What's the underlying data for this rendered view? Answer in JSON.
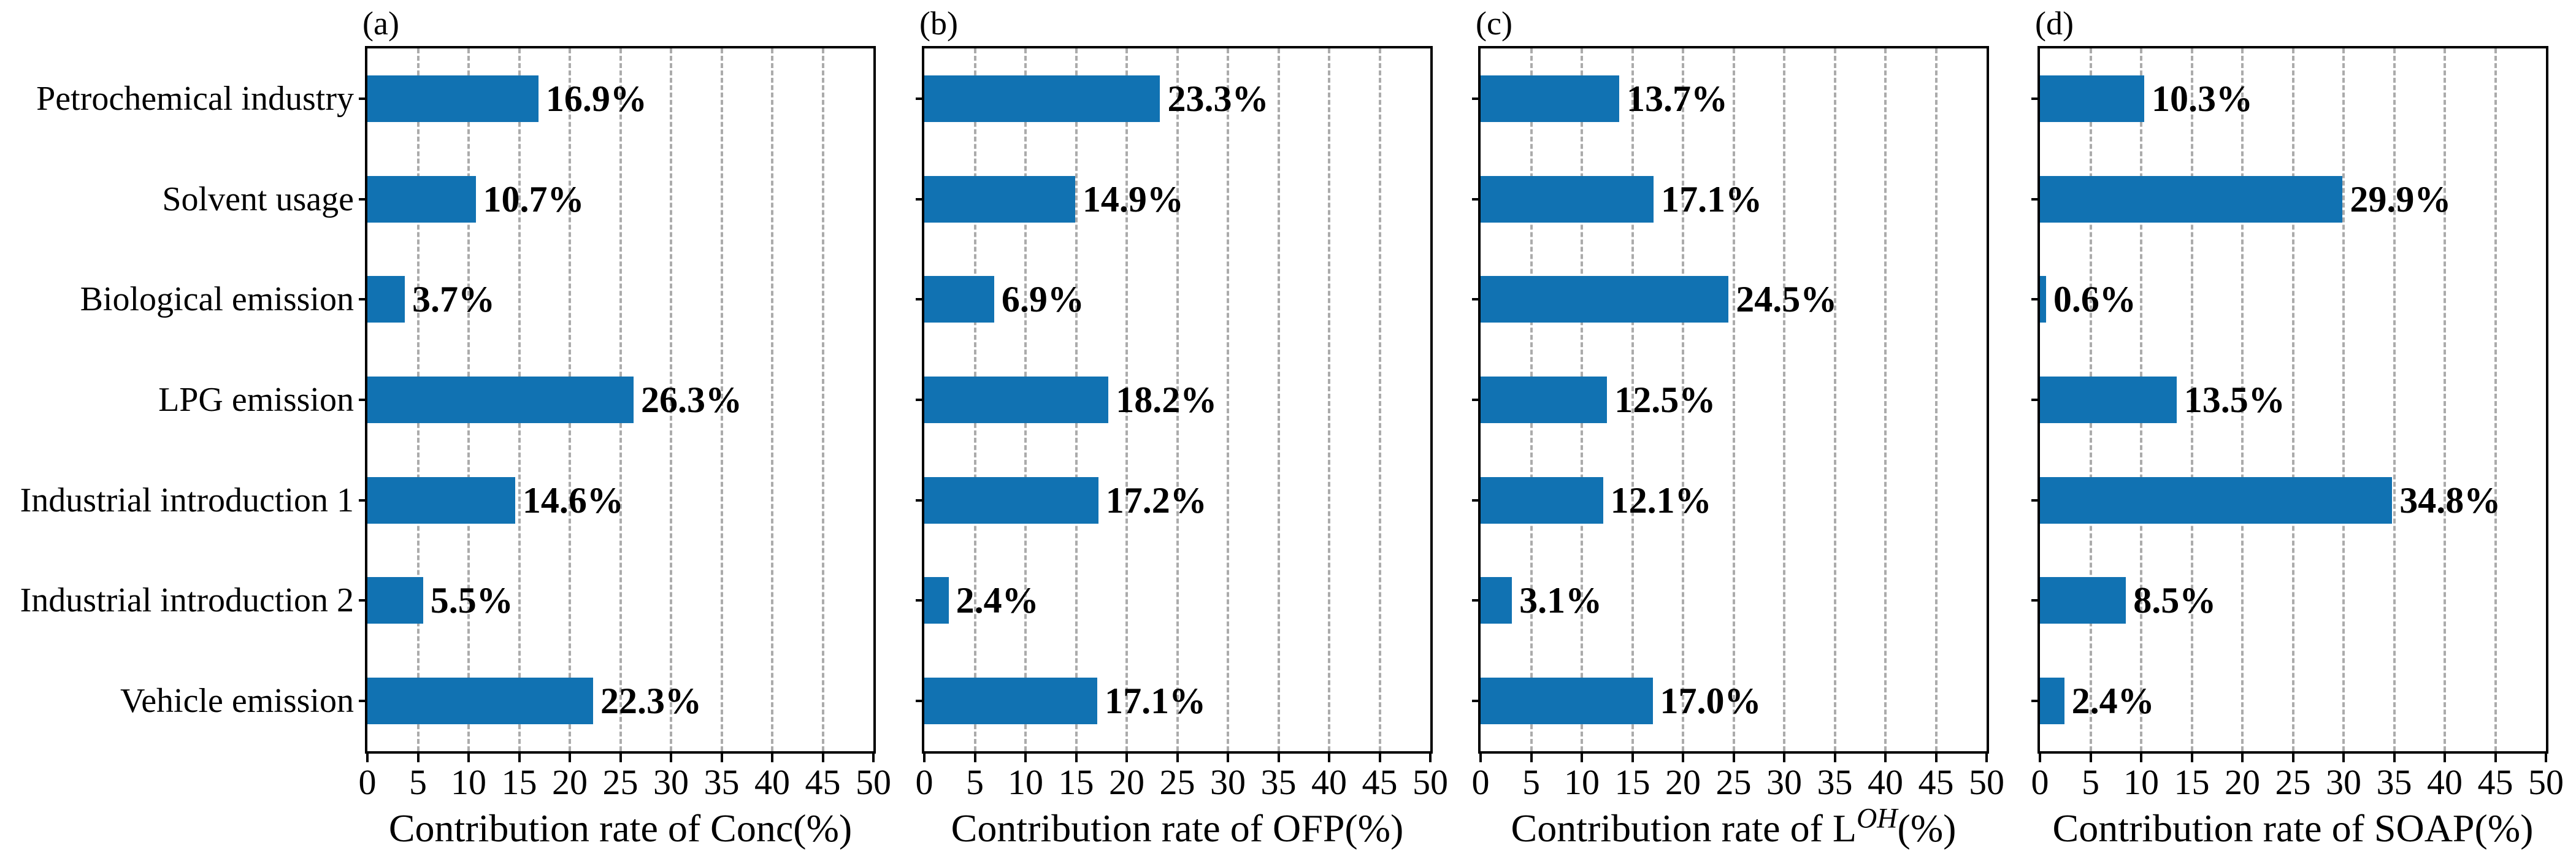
{
  "figure": {
    "background_color": "#ffffff",
    "bar_color": "#1172b2",
    "grid_color": "#ababab",
    "frame_color": "#000000",
    "text_color": "#000000",
    "categories": [
      "Petrochemical industry",
      "Solvent usage",
      "Biological emission",
      "LPG emission",
      "Industrial introduction 1",
      "Industrial introduction 2",
      "Vehicle emission"
    ]
  },
  "chart_data": [
    {
      "type": "bar",
      "orientation": "horizontal",
      "panel_label": "(a)",
      "categories": [
        "Petrochemical industry",
        "Solvent usage",
        "Biological emission",
        "LPG emission",
        "Industrial introduction 1",
        "Industrial introduction 2",
        "Vehicle emission"
      ],
      "values": [
        16.9,
        10.7,
        3.7,
        26.3,
        14.6,
        5.5,
        22.3
      ],
      "value_labels": [
        "16.9%",
        "10.7%",
        "3.7%",
        "26.3%",
        "14.6%",
        "5.5%",
        "22.3%"
      ],
      "xlabel_pre": "Contribution rate of Conc",
      "xlabel_sup": "",
      "xlabel_post": "(%)",
      "xlim": [
        0,
        50
      ],
      "xticks": [
        0,
        5,
        10,
        15,
        20,
        25,
        30,
        35,
        40,
        45,
        50
      ],
      "grid": "vertical-dashed",
      "legend": "none"
    },
    {
      "type": "bar",
      "orientation": "horizontal",
      "panel_label": "(b)",
      "categories": [
        "Petrochemical industry",
        "Solvent usage",
        "Biological emission",
        "LPG emission",
        "Industrial introduction 1",
        "Industrial introduction 2",
        "Vehicle emission"
      ],
      "values": [
        23.3,
        14.9,
        6.9,
        18.2,
        17.2,
        2.4,
        17.1
      ],
      "value_labels": [
        "23.3%",
        "14.9%",
        "6.9%",
        "18.2%",
        "17.2%",
        "2.4%",
        "17.1%"
      ],
      "xlabel_pre": "Contribution rate of OFP",
      "xlabel_sup": "",
      "xlabel_post": "(%)",
      "xlim": [
        0,
        50
      ],
      "xticks": [
        0,
        5,
        10,
        15,
        20,
        25,
        30,
        35,
        40,
        45,
        50
      ],
      "grid": "vertical-dashed",
      "legend": "none"
    },
    {
      "type": "bar",
      "orientation": "horizontal",
      "panel_label": "(c)",
      "categories": [
        "Petrochemical industry",
        "Solvent usage",
        "Biological emission",
        "LPG emission",
        "Industrial introduction 1",
        "Industrial introduction 2",
        "Vehicle emission"
      ],
      "values": [
        13.7,
        17.1,
        24.5,
        12.5,
        12.1,
        3.1,
        17.0
      ],
      "value_labels": [
        "13.7%",
        "17.1%",
        "24.5%",
        "12.5%",
        "12.1%",
        "3.1%",
        "17.0%"
      ],
      "xlabel_pre": "Contribution rate of L",
      "xlabel_sup": "OH",
      "xlabel_post": "(%)",
      "xlim": [
        0,
        50
      ],
      "xticks": [
        0,
        5,
        10,
        15,
        20,
        25,
        30,
        35,
        40,
        45,
        50
      ],
      "grid": "vertical-dashed",
      "legend": "none"
    },
    {
      "type": "bar",
      "orientation": "horizontal",
      "panel_label": "(d)",
      "categories": [
        "Petrochemical industry",
        "Solvent usage",
        "Biological emission",
        "LPG emission",
        "Industrial introduction 1",
        "Industrial introduction 2",
        "Vehicle emission"
      ],
      "values": [
        10.3,
        29.9,
        0.6,
        13.5,
        34.8,
        8.5,
        2.4
      ],
      "value_labels": [
        "10.3%",
        "29.9%",
        "0.6%",
        "13.5%",
        "34.8%",
        "8.5%",
        "2.4%"
      ],
      "xlabel_pre": "Contribution rate of SOAP",
      "xlabel_sup": "",
      "xlabel_post": "(%)",
      "xlim": [
        0,
        50
      ],
      "xticks": [
        0,
        5,
        10,
        15,
        20,
        25,
        30,
        35,
        40,
        45,
        50
      ],
      "grid": "vertical-dashed",
      "legend": "none"
    }
  ]
}
